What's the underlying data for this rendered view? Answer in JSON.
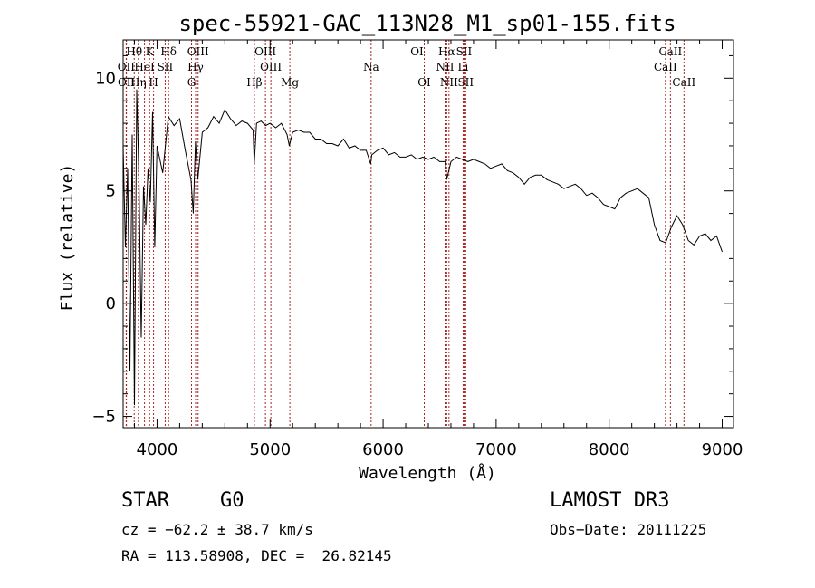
{
  "chart_data": {
    "type": "line",
    "title": "spec-55921-GAC_113N28_M1_sp01-155.fits",
    "xlabel": "Wavelength (Å)",
    "ylabel": "Flux (relative)",
    "xlim": [
      3700,
      9100
    ],
    "ylim": [
      -5.5,
      11.7
    ],
    "xticks": [
      4000,
      5000,
      6000,
      7000,
      8000,
      9000
    ],
    "yticks": [
      -5,
      0,
      5,
      10
    ],
    "grid": false,
    "series": [
      {
        "name": "flux",
        "x": [
          3700,
          3720,
          3740,
          3760,
          3780,
          3800,
          3820,
          3840,
          3860,
          3880,
          3900,
          3920,
          3940,
          3960,
          3980,
          4000,
          4050,
          4100,
          4150,
          4200,
          4250,
          4300,
          4320,
          4340,
          4360,
          4400,
          4450,
          4500,
          4550,
          4600,
          4650,
          4700,
          4750,
          4800,
          4850,
          4860,
          4880,
          4920,
          4960,
          5000,
          5050,
          5100,
          5150,
          5170,
          5180,
          5200,
          5250,
          5300,
          5350,
          5400,
          5450,
          5500,
          5550,
          5600,
          5650,
          5700,
          5750,
          5800,
          5850,
          5890,
          5900,
          5950,
          6000,
          6050,
          6100,
          6150,
          6200,
          6250,
          6300,
          6350,
          6400,
          6450,
          6500,
          6550,
          6563,
          6600,
          6650,
          6700,
          6750,
          6800,
          6850,
          6900,
          6950,
          7000,
          7050,
          7100,
          7150,
          7200,
          7250,
          7300,
          7350,
          7400,
          7450,
          7500,
          7550,
          7600,
          7650,
          7700,
          7750,
          7800,
          7850,
          7900,
          7950,
          8000,
          8050,
          8100,
          8150,
          8200,
          8250,
          8300,
          8350,
          8400,
          8450,
          8500,
          8550,
          8600,
          8650,
          8700,
          8750,
          8800,
          8850,
          8900,
          8950,
          9000
        ],
        "values": [
          7.0,
          2.5,
          6.0,
          -3.0,
          7.5,
          -4.5,
          9.5,
          5.5,
          -1.5,
          5.2,
          3.5,
          6.0,
          4.5,
          8.5,
          2.5,
          7.0,
          5.8,
          8.3,
          7.9,
          8.2,
          6.8,
          5.5,
          4.0,
          7.2,
          5.5,
          7.6,
          7.8,
          8.3,
          8.0,
          8.6,
          8.2,
          7.9,
          8.1,
          8.0,
          7.7,
          6.2,
          8.0,
          8.1,
          7.9,
          8.0,
          7.8,
          8.0,
          7.5,
          7.0,
          7.2,
          7.6,
          7.7,
          7.6,
          7.6,
          7.3,
          7.3,
          7.1,
          7.1,
          7.0,
          7.3,
          6.9,
          7.0,
          6.8,
          6.8,
          6.2,
          6.6,
          6.8,
          6.9,
          6.6,
          6.7,
          6.5,
          6.5,
          6.6,
          6.4,
          6.5,
          6.4,
          6.5,
          6.3,
          6.3,
          5.5,
          6.3,
          6.5,
          6.4,
          6.3,
          6.4,
          6.3,
          6.2,
          6.0,
          6.1,
          6.2,
          5.9,
          5.8,
          5.6,
          5.3,
          5.6,
          5.7,
          5.7,
          5.5,
          5.4,
          5.3,
          5.1,
          5.2,
          5.3,
          5.1,
          4.8,
          4.9,
          4.7,
          4.4,
          4.3,
          4.2,
          4.7,
          4.9,
          5.0,
          5.1,
          4.9,
          4.7,
          3.5,
          2.8,
          2.7,
          3.4,
          3.9,
          3.5,
          2.8,
          2.6,
          3.0,
          3.1,
          2.8,
          3.0,
          2.3
        ]
      }
    ],
    "lines": [
      {
        "label": "Hθ",
        "x": 3798,
        "row": 0
      },
      {
        "label": "OII",
        "x": 3727,
        "row": 1
      },
      {
        "label": "OII",
        "x": 3729,
        "row": 2
      },
      {
        "label": "Hη",
        "x": 3835,
        "row": 2
      },
      {
        "label": "K",
        "x": 3934,
        "row": 0
      },
      {
        "label": "HeI",
        "x": 3889,
        "row": 1
      },
      {
        "label": "H",
        "x": 3969,
        "row": 2
      },
      {
        "label": "Hδ",
        "x": 4102,
        "row": 0
      },
      {
        "label": "SII",
        "x": 4072,
        "row": 1
      },
      {
        "label": "OIII",
        "x": 4363,
        "row": 0
      },
      {
        "label": "Hγ",
        "x": 4341,
        "row": 1
      },
      {
        "label": "G",
        "x": 4305,
        "row": 2
      },
      {
        "label": "OIII",
        "x": 4959,
        "row": 0
      },
      {
        "label": "OIII",
        "x": 5007,
        "row": 1
      },
      {
        "label": "Hβ",
        "x": 4861,
        "row": 2
      },
      {
        "label": "Mg",
        "x": 5175,
        "row": 2
      },
      {
        "label": "Na",
        "x": 5894,
        "row": 1
      },
      {
        "label": "OI",
        "x": 6300,
        "row": 0
      },
      {
        "label": "OI",
        "x": 6364,
        "row": 2
      },
      {
        "label": "Hα",
        "x": 6563,
        "row": 0
      },
      {
        "label": "NII",
        "x": 6548,
        "row": 1
      },
      {
        "label": "NII",
        "x": 6583,
        "row": 2
      },
      {
        "label": "SII",
        "x": 6716,
        "row": 0
      },
      {
        "label": "Li",
        "x": 6708,
        "row": 1
      },
      {
        "label": "SII",
        "x": 6731,
        "row": 2
      },
      {
        "label": "CaII",
        "x": 8542,
        "row": 0
      },
      {
        "label": "CaII",
        "x": 8498,
        "row": 1
      },
      {
        "label": "CaII",
        "x": 8662,
        "row": 2
      }
    ]
  },
  "info": {
    "object_class": "STAR",
    "subclass": "G0",
    "survey": "LAMOST DR3",
    "cz": "cz = −62.2 ± 38.7 km/s",
    "obs_date": "Obs−Date: 20111225",
    "coords": "RA = 113.58908, DEC =  26.82145"
  },
  "colors": {
    "line_marker": "#aa2222",
    "spectrum": "#000000"
  }
}
